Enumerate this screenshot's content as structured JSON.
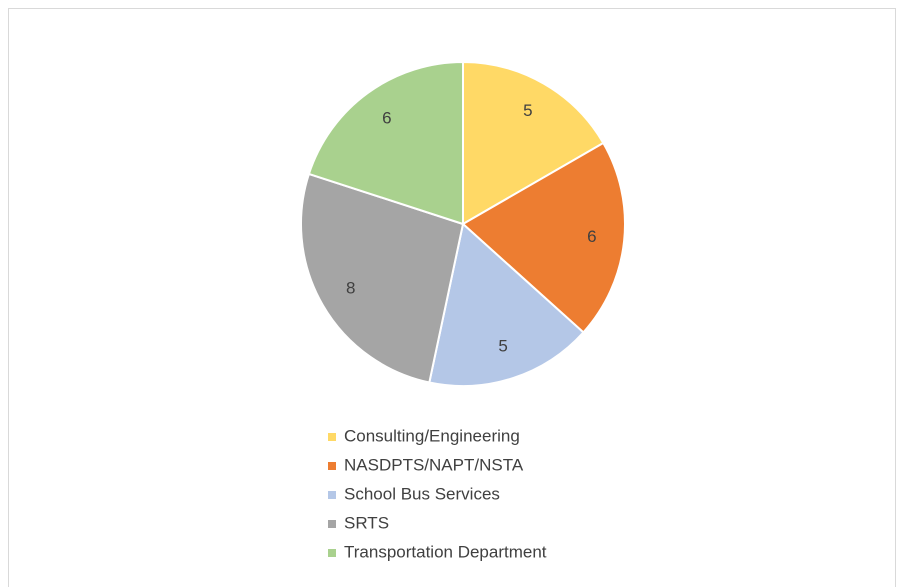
{
  "chart_data": {
    "type": "pie",
    "categories": [
      "Consulting/Engineering",
      "NASDPTS/NAPT/NSTA",
      "School Bus Services",
      "SRTS",
      "Transportation Department"
    ],
    "values": [
      5,
      6,
      5,
      8,
      6
    ],
    "colors": [
      "#FFD966",
      "#ED7D31",
      "#B4C7E7",
      "#A5A5A5",
      "#A9D18E"
    ]
  }
}
